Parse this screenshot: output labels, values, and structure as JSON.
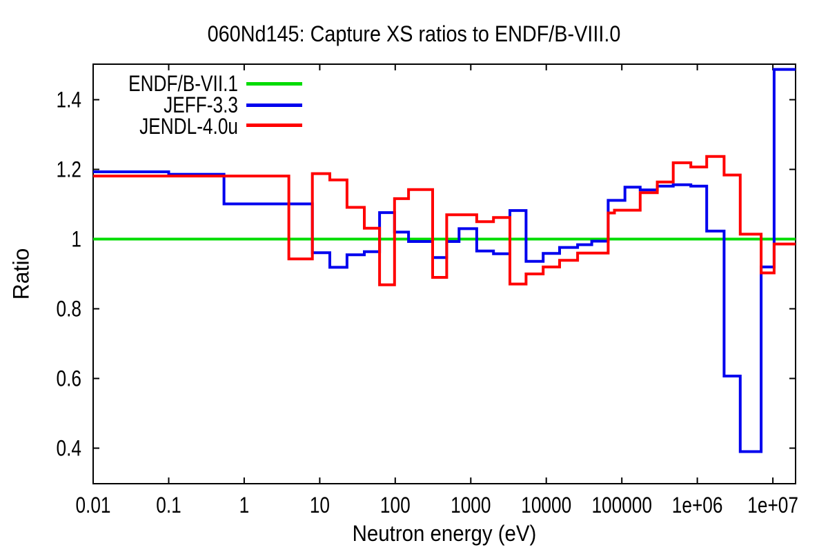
{
  "chart_data": {
    "type": "line",
    "subtype": "histogram-step",
    "title": "060Nd145: Capture XS ratios to ENDF/B-VIII.0",
    "xlabel": "Neutron energy (eV)",
    "ylabel": "Ratio",
    "x_scale": "log",
    "x_range": [
      0.01,
      20000000
    ],
    "y_range": [
      0.298,
      1.502
    ],
    "x_ticks": [
      0.01,
      0.1,
      1,
      10,
      100,
      1000,
      10000,
      100000,
      1000000,
      10000000
    ],
    "x_tick_labels": [
      "0.01",
      "0.1",
      "1",
      "10",
      "100",
      "1000",
      "10000",
      "100000",
      "1e+06",
      "1e+07"
    ],
    "y_ticks": [
      0.4,
      0.6,
      0.8,
      1,
      1.2,
      1.4
    ],
    "y_tick_labels": [
      "0.4",
      "0.6",
      "0.8",
      "1",
      "1.2",
      "1.4"
    ],
    "grid": false,
    "legend_position": "top-left",
    "energy_bin_edges_eV": [
      0.01,
      0.1,
      0.54,
      3.9,
      8,
      13.6,
      23,
      39,
      62,
      98,
      150,
      313,
      480,
      700,
      1200,
      2000,
      3300,
      5400,
      9100,
      15000,
      26000,
      40000,
      66000,
      80000,
      110000,
      175000,
      295000,
      480000,
      820000,
      1330000,
      2260000,
      3700000,
      7000000,
      10400000,
      20000000
    ],
    "series": [
      {
        "name": "ENDF/B-VII.1",
        "color": "#00dc00",
        "style": "constant",
        "value": 1.0
      },
      {
        "name": "JEFF-3.3",
        "color": "#0000ee",
        "style": "histogram",
        "values": [
          1.193,
          1.186,
          1.101,
          1.101,
          0.961,
          0.919,
          0.955,
          0.964,
          1.076,
          1.02,
          0.993,
          0.947,
          0.993,
          1.03,
          0.966,
          0.958,
          1.082,
          0.936,
          0.959,
          0.976,
          0.984,
          0.994,
          1.111,
          1.111,
          1.149,
          1.141,
          1.152,
          1.156,
          1.152,
          1.023,
          0.607,
          0.39,
          0.92,
          1.487
        ]
      },
      {
        "name": "JENDL-4.0u",
        "color": "#ff0000",
        "style": "histogram",
        "values": [
          1.181,
          1.181,
          1.181,
          0.943,
          1.188,
          1.17,
          1.091,
          1.031,
          0.869,
          1.116,
          1.142,
          0.89,
          1.07,
          1.07,
          1.05,
          1.062,
          0.871,
          0.9,
          0.92,
          0.939,
          0.96,
          0.96,
          1.075,
          1.083,
          1.083,
          1.133,
          1.164,
          1.219,
          1.207,
          1.237,
          1.184,
          1.014,
          0.903,
          0.986
        ]
      }
    ]
  }
}
